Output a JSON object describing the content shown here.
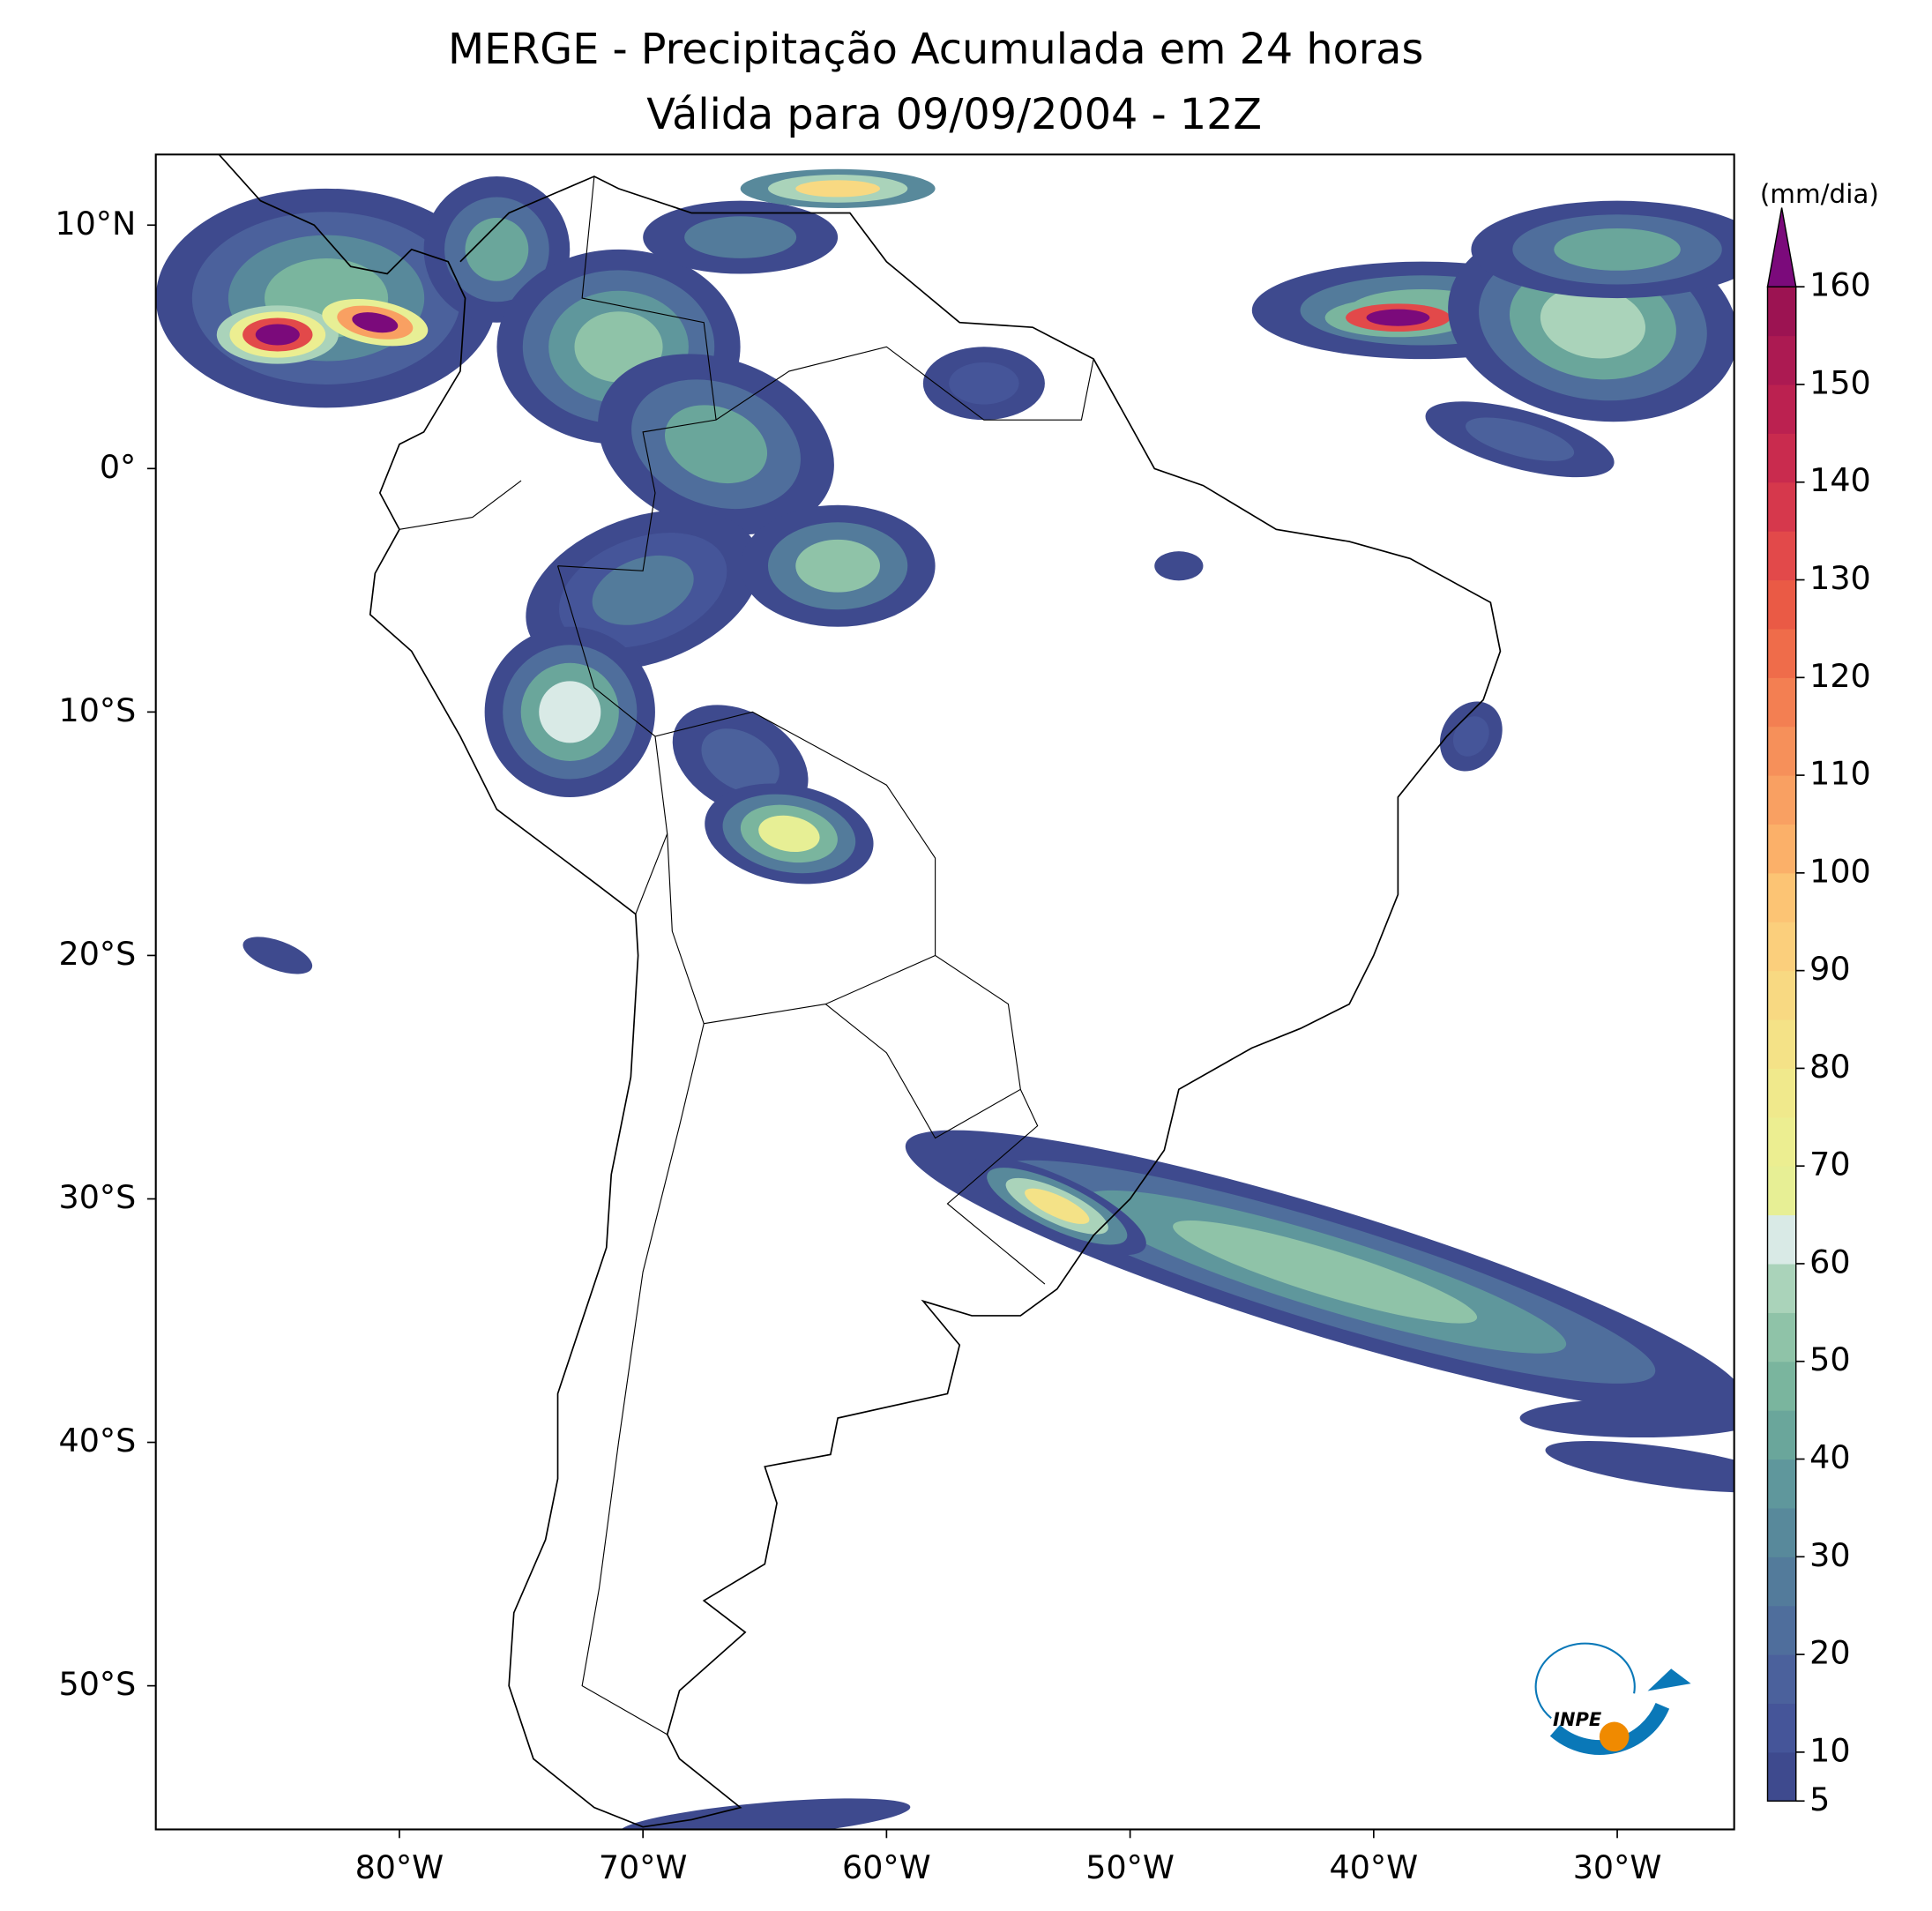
{
  "header": {
    "title": "MERGE - Precipitação Acumulada em 24 horas",
    "subtitle": "Válida para 09/09/2004 - 12Z"
  },
  "map": {
    "lonlim": [
      -90,
      -25.2
    ],
    "latlim": [
      -55.9,
      12.9
    ],
    "lon_ticks": [
      {
        "value": -80,
        "label": "80°W"
      },
      {
        "value": -70,
        "label": "70°W"
      },
      {
        "value": -60,
        "label": "60°W"
      },
      {
        "value": -50,
        "label": "50°W"
      },
      {
        "value": -40,
        "label": "40°W"
      },
      {
        "value": -30,
        "label": "30°W"
      }
    ],
    "lat_ticks": [
      {
        "value": 10,
        "label": "10°N"
      },
      {
        "value": 0,
        "label": "0°"
      },
      {
        "value": -10,
        "label": "10°S"
      },
      {
        "value": -20,
        "label": "20°S"
      },
      {
        "value": -30,
        "label": "30°S"
      },
      {
        "value": -40,
        "label": "40°S"
      },
      {
        "value": -50,
        "label": "50°S"
      }
    ]
  },
  "colorbar": {
    "label": "(mm/dia)",
    "levels": [
      5,
      10,
      15,
      20,
      25,
      30,
      35,
      40,
      45,
      50,
      55,
      60,
      65,
      70,
      75,
      80,
      85,
      90,
      95,
      100,
      105,
      110,
      115,
      120,
      125,
      130,
      135,
      140,
      145,
      150,
      155,
      160
    ],
    "ticks": [
      5,
      10,
      20,
      30,
      40,
      50,
      60,
      70,
      80,
      90,
      100,
      110,
      120,
      130,
      140,
      150,
      160
    ],
    "colors": [
      "#3e4a8e",
      "#455599",
      "#4b619c",
      "#4f6e9c",
      "#537b9b",
      "#58899b",
      "#5f979c",
      "#6aa69b",
      "#7ab59e",
      "#8fc3a8",
      "#aad3ba",
      "#d9eae6",
      "#e7ef95",
      "#ecee91",
      "#f0e98c",
      "#f4e287",
      "#f8d982",
      "#fbcf7c",
      "#fcc474",
      "#fbb069",
      "#f9a062",
      "#f6905a",
      "#f37f52",
      "#ef6c4a",
      "#ea5a45",
      "#e2494a",
      "#d6384c",
      "#c92b4e",
      "#bb2150",
      "#ac1a52",
      "#9c1352"
    ],
    "extend_color": "#7b0a7b"
  },
  "logo": {
    "text": "INPE"
  }
}
